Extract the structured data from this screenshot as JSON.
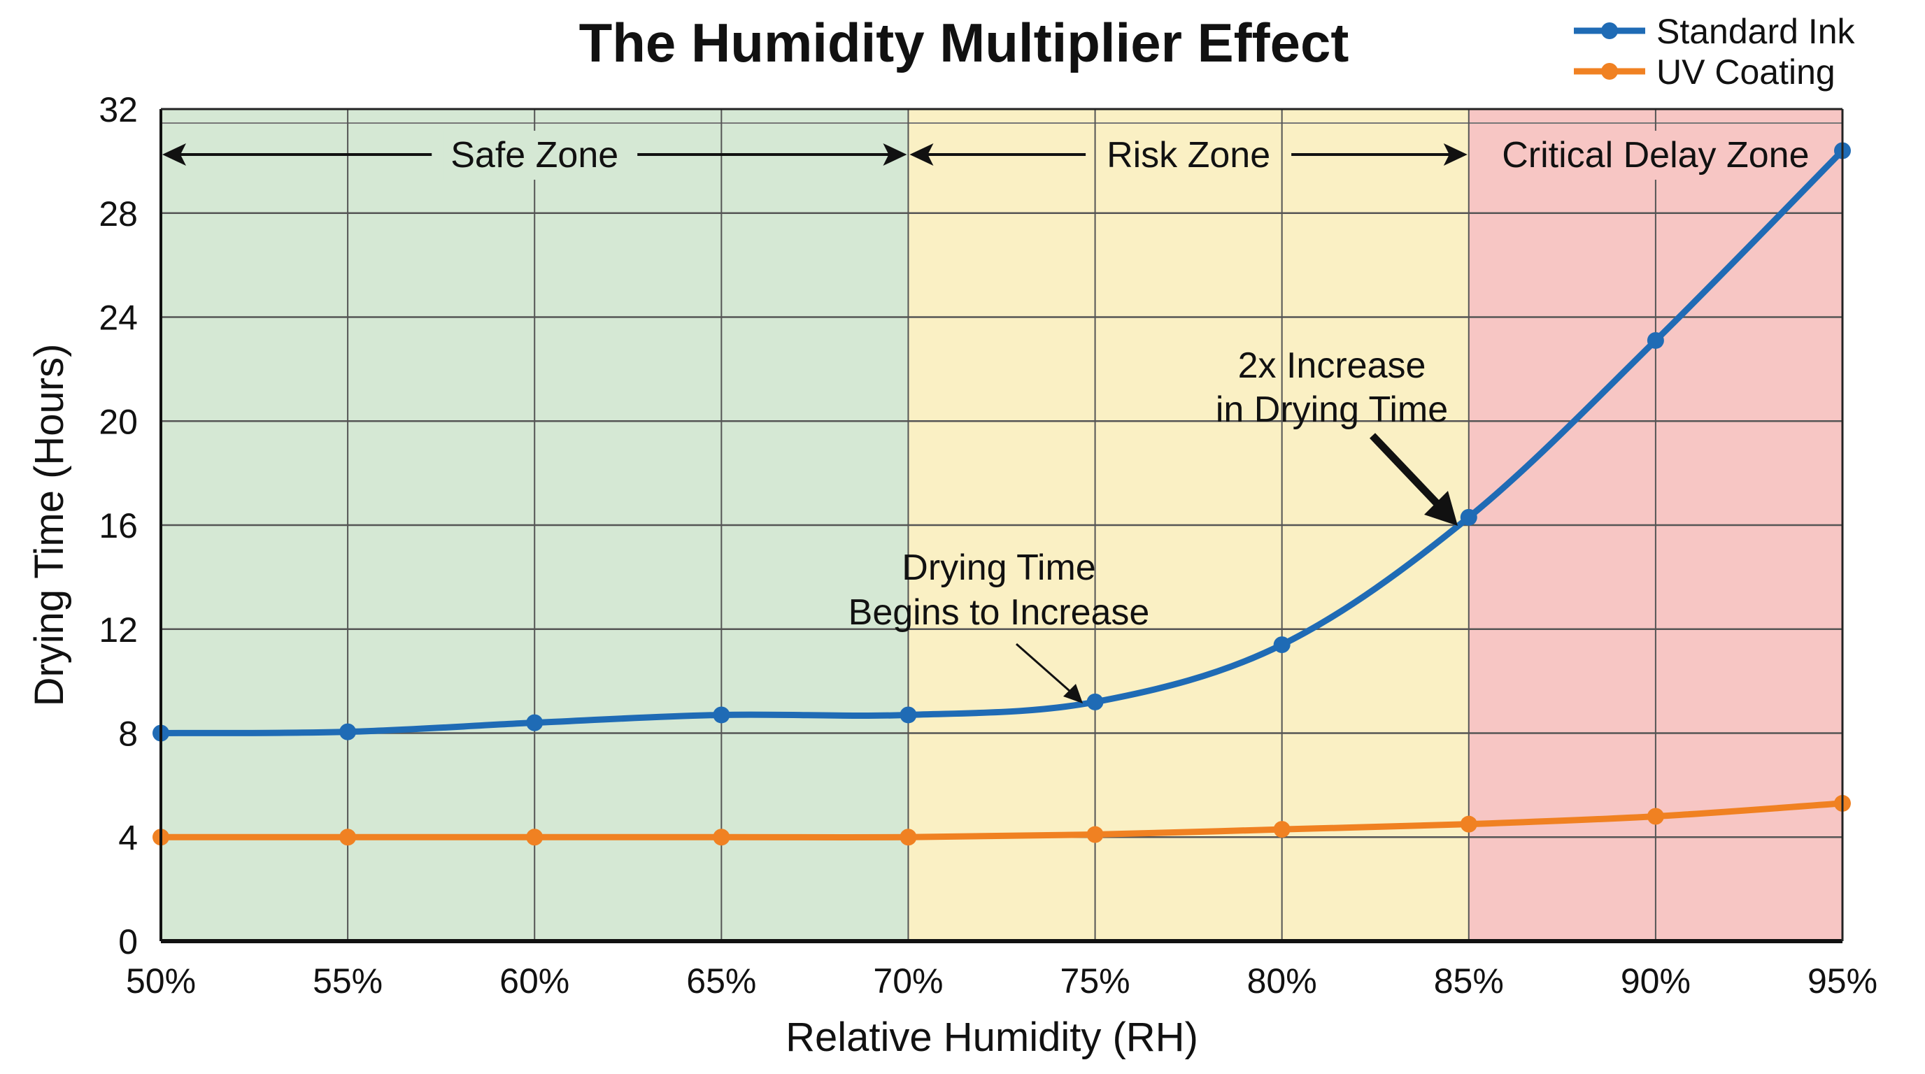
{
  "chart_data": {
    "type": "line",
    "title": "The Humidity Multiplier Effect",
    "xlabel": "Relative Humidity (RH)",
    "ylabel": "Drying Time (Hours)",
    "x": [
      50,
      55,
      60,
      65,
      70,
      75,
      80,
      85,
      90,
      95
    ],
    "x_tick_labels": [
      "50%",
      "55%",
      "60%",
      "65%",
      "70%",
      "75%",
      "80%",
      "85%",
      "90%",
      "95%"
    ],
    "y_ticks": [
      0,
      4,
      8,
      12,
      16,
      20,
      24,
      28,
      32
    ],
    "xlim": [
      50,
      95
    ],
    "ylim": [
      0,
      32
    ],
    "grid": true,
    "legend_position": "top-right",
    "series": [
      {
        "name": "Standard Ink",
        "color": "#1f6bb5",
        "values": [
          8.0,
          8.05,
          8.4,
          8.7,
          8.7,
          9.2,
          11.4,
          16.3,
          23.1,
          30.4
        ]
      },
      {
        "name": "UV Coating",
        "color": "#f08122",
        "values": [
          4.0,
          4.0,
          4.0,
          4.0,
          4.0,
          4.1,
          4.3,
          4.5,
          4.8,
          5.3
        ]
      }
    ],
    "zones": [
      {
        "label": "Safe Zone",
        "from": 50,
        "to": 70,
        "color": "#d5e8d4"
      },
      {
        "label": "Risk Zone",
        "from": 70,
        "to": 85,
        "color": "#faf0c4"
      },
      {
        "label": "Critical Delay Zone",
        "from": 85,
        "to": 95,
        "color": "#f7c6c4"
      }
    ],
    "annotations": [
      {
        "lines": [
          "Drying Time",
          "Begins to Increase"
        ],
        "x": 75,
        "y": 9.2
      },
      {
        "lines": [
          "2x Increase",
          "in Drying Time"
        ],
        "x": 85,
        "y": 16.3
      }
    ]
  }
}
